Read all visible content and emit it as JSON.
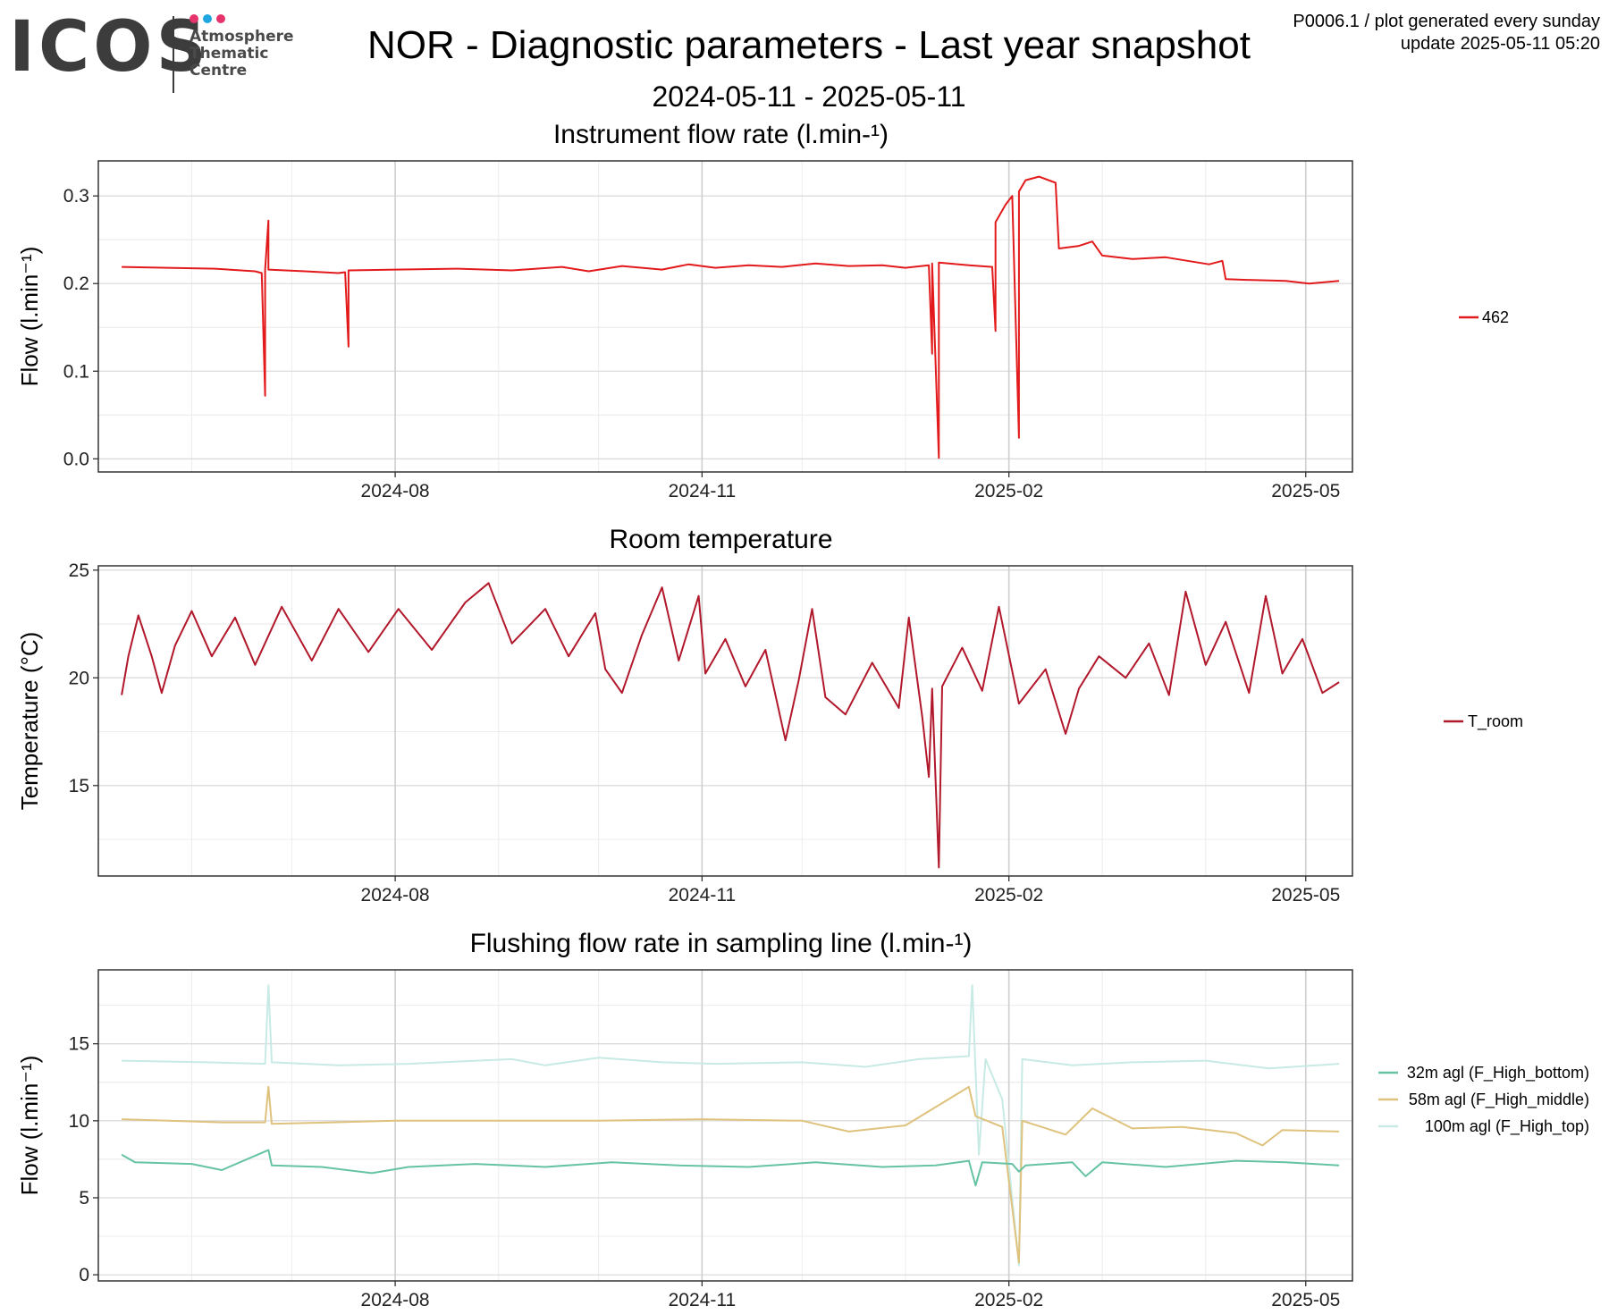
{
  "logo": {
    "text": "ICOS",
    "subtitle_lines": [
      "Atmosphere",
      "Thematic",
      "Centre"
    ],
    "dot_colors": [
      "#e6336b",
      "#1fa6e0",
      "#e6336b"
    ]
  },
  "header": {
    "title": "NOR - Diagnostic parameters - Last year snapshot",
    "date_range": "2024-05-11 - 2025-05-11",
    "meta_line1": "P0006.1 / plot generated every sunday",
    "meta_line2": "update  2025-05-11 05:20"
  },
  "x_ticks": [
    "2024-08",
    "2024-11",
    "2025-02",
    "2025-05"
  ],
  "chart_data": [
    {
      "type": "line",
      "title": "Instrument flow rate (l.min-¹)",
      "ylabel": "Flow (l.min⁻¹)",
      "xlim": [
        "2024-05-11",
        "2025-05-11"
      ],
      "ylim": [
        -0.015,
        0.34
      ],
      "yticks": [
        0.0,
        0.1,
        0.2,
        0.3
      ],
      "ytick_labels": [
        "0.0",
        "0.1",
        "0.2",
        "0.3"
      ],
      "legend_position": "right",
      "series": [
        {
          "name": "462",
          "color": "#e31a1c",
          "points": [
            [
              "2024-05-11",
              0.219
            ],
            [
              "2024-05-25",
              0.218
            ],
            [
              "2024-06-08",
              0.217
            ],
            [
              "2024-06-20",
              0.214
            ],
            [
              "2024-06-22",
              0.212
            ],
            [
              "2024-06-23",
              0.072
            ],
            [
              "2024-06-23",
              0.216
            ],
            [
              "2024-06-24",
              0.272
            ],
            [
              "2024-06-24",
              0.216
            ],
            [
              "2024-07-05",
              0.214
            ],
            [
              "2024-07-15",
              0.212
            ],
            [
              "2024-07-17",
              0.213
            ],
            [
              "2024-07-18",
              0.128
            ],
            [
              "2024-07-18",
              0.215
            ],
            [
              "2024-08-01",
              0.216
            ],
            [
              "2024-08-20",
              0.217
            ],
            [
              "2024-09-05",
              0.215
            ],
            [
              "2024-09-20",
              0.219
            ],
            [
              "2024-09-28",
              0.214
            ],
            [
              "2024-10-08",
              0.22
            ],
            [
              "2024-10-20",
              0.216
            ],
            [
              "2024-10-28",
              0.222
            ],
            [
              "2024-11-05",
              0.218
            ],
            [
              "2024-11-15",
              0.221
            ],
            [
              "2024-11-25",
              0.219
            ],
            [
              "2024-12-05",
              0.223
            ],
            [
              "2024-12-15",
              0.22
            ],
            [
              "2024-12-25",
              0.221
            ],
            [
              "2025-01-01",
              0.218
            ],
            [
              "2025-01-08",
              0.221
            ],
            [
              "2025-01-09",
              0.12
            ],
            [
              "2025-01-09",
              0.223
            ],
            [
              "2025-01-11",
              0.001
            ],
            [
              "2025-01-11",
              0.224
            ],
            [
              "2025-01-20",
              0.221
            ],
            [
              "2025-01-27",
              0.219
            ],
            [
              "2025-01-28",
              0.146
            ],
            [
              "2025-01-28",
              0.27
            ],
            [
              "2025-01-31",
              0.29
            ],
            [
              "2025-02-02",
              0.3
            ],
            [
              "2025-02-04",
              0.024
            ],
            [
              "2025-02-04",
              0.305
            ],
            [
              "2025-02-06",
              0.318
            ],
            [
              "2025-02-10",
              0.322
            ],
            [
              "2025-02-15",
              0.315
            ],
            [
              "2025-02-16",
              0.24
            ],
            [
              "2025-02-22",
              0.243
            ],
            [
              "2025-02-26",
              0.248
            ],
            [
              "2025-03-01",
              0.232
            ],
            [
              "2025-03-10",
              0.228
            ],
            [
              "2025-03-20",
              0.23
            ],
            [
              "2025-03-28",
              0.225
            ],
            [
              "2025-04-02",
              0.222
            ],
            [
              "2025-04-06",
              0.226
            ],
            [
              "2025-04-07",
              0.205
            ],
            [
              "2025-04-15",
              0.204
            ],
            [
              "2025-04-25",
              0.203
            ],
            [
              "2025-05-02",
              0.2
            ],
            [
              "2025-05-11",
              0.203
            ]
          ]
        }
      ]
    },
    {
      "type": "line",
      "title": "Room temperature",
      "ylabel": "Temperature (°C)",
      "xlim": [
        "2024-05-11",
        "2025-05-11"
      ],
      "ylim": [
        10.8,
        25.2
      ],
      "yticks": [
        15,
        20,
        25
      ],
      "ytick_labels": [
        "15",
        "20",
        "25"
      ],
      "legend_position": "right",
      "series": [
        {
          "name": "T_room",
          "color": "#b2182b",
          "points": [
            [
              "2024-05-11",
              19.2
            ],
            [
              "2024-05-13",
              21.0
            ],
            [
              "2024-05-16",
              22.9
            ],
            [
              "2024-05-20",
              21.0
            ],
            [
              "2024-05-23",
              19.3
            ],
            [
              "2024-05-27",
              21.5
            ],
            [
              "2024-06-01",
              23.1
            ],
            [
              "2024-06-07",
              21.0
            ],
            [
              "2024-06-14",
              22.8
            ],
            [
              "2024-06-20",
              20.6
            ],
            [
              "2024-06-28",
              23.3
            ],
            [
              "2024-07-07",
              20.8
            ],
            [
              "2024-07-15",
              23.2
            ],
            [
              "2024-07-24",
              21.2
            ],
            [
              "2024-08-02",
              23.2
            ],
            [
              "2024-08-12",
              21.3
            ],
            [
              "2024-08-22",
              23.5
            ],
            [
              "2024-08-29",
              24.4
            ],
            [
              "2024-09-05",
              21.6
            ],
            [
              "2024-09-15",
              23.2
            ],
            [
              "2024-09-22",
              21.0
            ],
            [
              "2024-09-30",
              23.0
            ],
            [
              "2024-10-03",
              20.4
            ],
            [
              "2024-10-08",
              19.3
            ],
            [
              "2024-10-14",
              22.0
            ],
            [
              "2024-10-20",
              24.2
            ],
            [
              "2024-10-25",
              20.8
            ],
            [
              "2024-10-31",
              23.8
            ],
            [
              "2024-11-02",
              20.2
            ],
            [
              "2024-11-08",
              21.8
            ],
            [
              "2024-11-14",
              19.6
            ],
            [
              "2024-11-20",
              21.3
            ],
            [
              "2024-11-26",
              17.1
            ],
            [
              "2024-11-30",
              19.9
            ],
            [
              "2024-12-04",
              23.2
            ],
            [
              "2024-12-08",
              19.1
            ],
            [
              "2024-12-14",
              18.3
            ],
            [
              "2024-12-22",
              20.7
            ],
            [
              "2024-12-30",
              18.6
            ],
            [
              "2025-01-02",
              22.8
            ],
            [
              "2025-01-06",
              18.2
            ],
            [
              "2025-01-08",
              15.4
            ],
            [
              "2025-01-09",
              19.5
            ],
            [
              "2025-01-11",
              11.2
            ],
            [
              "2025-01-12",
              19.6
            ],
            [
              "2025-01-18",
              21.4
            ],
            [
              "2025-01-24",
              19.4
            ],
            [
              "2025-01-29",
              23.3
            ],
            [
              "2025-02-04",
              18.8
            ],
            [
              "2025-02-12",
              20.4
            ],
            [
              "2025-02-18",
              17.4
            ],
            [
              "2025-02-22",
              19.5
            ],
            [
              "2025-02-28",
              21.0
            ],
            [
              "2025-03-08",
              20.0
            ],
            [
              "2025-03-15",
              21.6
            ],
            [
              "2025-03-21",
              19.2
            ],
            [
              "2025-03-26",
              24.0
            ],
            [
              "2025-04-01",
              20.6
            ],
            [
              "2025-04-07",
              22.6
            ],
            [
              "2025-04-14",
              19.3
            ],
            [
              "2025-04-19",
              23.8
            ],
            [
              "2025-04-24",
              20.2
            ],
            [
              "2025-04-30",
              21.8
            ],
            [
              "2025-05-06",
              19.3
            ],
            [
              "2025-05-11",
              19.8
            ]
          ]
        }
      ]
    },
    {
      "type": "line",
      "title": "Flushing flow rate in sampling line (l.min-¹)",
      "ylabel": "Flow (l.min⁻¹)",
      "xlim": [
        "2024-05-11",
        "2025-05-11"
      ],
      "ylim": [
        -0.4,
        19.8
      ],
      "yticks": [
        0,
        5,
        10,
        15
      ],
      "ytick_labels": [
        "0",
        "5",
        "10",
        "15"
      ],
      "legend_position": "right",
      "series": [
        {
          "name": "32m agl (F_High_bottom)",
          "color": "#66c2a5",
          "points": [
            [
              "2024-05-11",
              7.8
            ],
            [
              "2024-05-15",
              7.3
            ],
            [
              "2024-06-01",
              7.2
            ],
            [
              "2024-06-10",
              6.8
            ],
            [
              "2024-06-24",
              8.1
            ],
            [
              "2024-06-25",
              7.1
            ],
            [
              "2024-07-10",
              7.0
            ],
            [
              "2024-07-25",
              6.6
            ],
            [
              "2024-08-05",
              7.0
            ],
            [
              "2024-08-25",
              7.2
            ],
            [
              "2024-09-15",
              7.0
            ],
            [
              "2024-10-05",
              7.3
            ],
            [
              "2024-10-25",
              7.1
            ],
            [
              "2024-11-15",
              7.0
            ],
            [
              "2024-12-05",
              7.3
            ],
            [
              "2024-12-25",
              7.0
            ],
            [
              "2025-01-10",
              7.1
            ],
            [
              "2025-01-20",
              7.4
            ],
            [
              "2025-01-22",
              5.8
            ],
            [
              "2025-01-24",
              7.3
            ],
            [
              "2025-02-02",
              7.2
            ],
            [
              "2025-02-04",
              6.7
            ],
            [
              "2025-02-06",
              7.1
            ],
            [
              "2025-02-20",
              7.3
            ],
            [
              "2025-02-24",
              6.4
            ],
            [
              "2025-03-01",
              7.3
            ],
            [
              "2025-03-20",
              7.0
            ],
            [
              "2025-04-10",
              7.4
            ],
            [
              "2025-04-25",
              7.3
            ],
            [
              "2025-05-11",
              7.1
            ]
          ]
        },
        {
          "name": "58m agl (F_High_middle)",
          "color": "#dfc27d",
          "points": [
            [
              "2024-05-11",
              10.1
            ],
            [
              "2024-06-10",
              9.9
            ],
            [
              "2024-06-23",
              9.9
            ],
            [
              "2024-06-24",
              12.2
            ],
            [
              "2024-06-25",
              9.8
            ],
            [
              "2024-08-01",
              10.0
            ],
            [
              "2024-09-01",
              10.0
            ],
            [
              "2024-10-01",
              10.0
            ],
            [
              "2024-11-01",
              10.1
            ],
            [
              "2024-12-01",
              10.0
            ],
            [
              "2024-12-15",
              9.3
            ],
            [
              "2025-01-01",
              9.7
            ],
            [
              "2025-01-20",
              12.2
            ],
            [
              "2025-01-22",
              10.3
            ],
            [
              "2025-01-30",
              9.6
            ],
            [
              "2025-02-04",
              0.8
            ],
            [
              "2025-02-05",
              10.0
            ],
            [
              "2025-02-18",
              9.1
            ],
            [
              "2025-02-26",
              10.8
            ],
            [
              "2025-03-10",
              9.5
            ],
            [
              "2025-03-25",
              9.6
            ],
            [
              "2025-04-10",
              9.2
            ],
            [
              "2025-04-18",
              8.4
            ],
            [
              "2025-04-24",
              9.4
            ],
            [
              "2025-05-11",
              9.3
            ]
          ]
        },
        {
          "name": "100m agl (F_High_top)",
          "color": "#c7eae5",
          "points": [
            [
              "2024-05-11",
              13.9
            ],
            [
              "2024-06-05",
              13.8
            ],
            [
              "2024-06-23",
              13.7
            ],
            [
              "2024-06-24",
              18.8
            ],
            [
              "2024-06-25",
              13.8
            ],
            [
              "2024-07-15",
              13.6
            ],
            [
              "2024-08-05",
              13.7
            ],
            [
              "2024-09-05",
              14.0
            ],
            [
              "2024-09-15",
              13.6
            ],
            [
              "2024-10-01",
              14.1
            ],
            [
              "2024-10-20",
              13.8
            ],
            [
              "2024-11-05",
              13.7
            ],
            [
              "2024-12-01",
              13.8
            ],
            [
              "2024-12-20",
              13.5
            ],
            [
              "2025-01-05",
              14.0
            ],
            [
              "2025-01-20",
              14.2
            ],
            [
              "2025-01-21",
              18.8
            ],
            [
              "2025-01-23",
              7.8
            ],
            [
              "2025-01-25",
              14.0
            ],
            [
              "2025-01-30",
              11.4
            ],
            [
              "2025-02-04",
              0.6
            ],
            [
              "2025-02-05",
              14.0
            ],
            [
              "2025-02-20",
              13.6
            ],
            [
              "2025-03-10",
              13.8
            ],
            [
              "2025-04-01",
              13.9
            ],
            [
              "2025-04-20",
              13.4
            ],
            [
              "2025-05-11",
              13.7
            ]
          ]
        }
      ]
    }
  ]
}
